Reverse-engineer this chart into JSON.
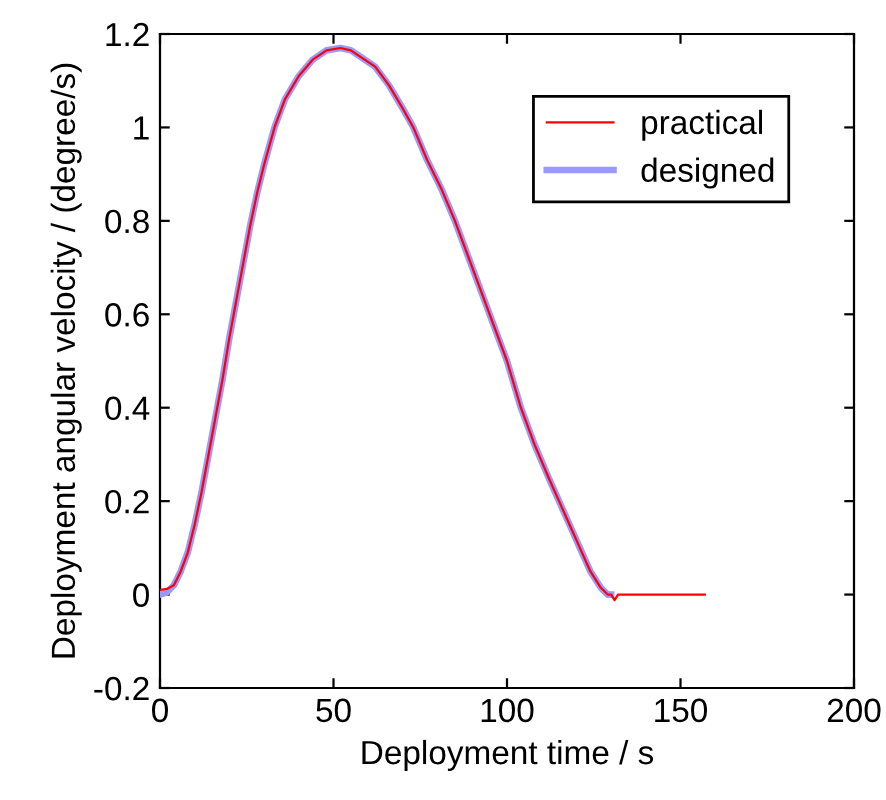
{
  "chart_data": {
    "type": "line",
    "xlabel": "Deployment time / s",
    "ylabel": "Deployment angular velocity / (degree/s)",
    "xlim": [
      0,
      200
    ],
    "ylim": [
      -0.2,
      1.2
    ],
    "xticks": [
      0,
      50,
      100,
      150,
      200
    ],
    "yticks": [
      -0.2,
      0,
      0.2,
      0.4,
      0.6,
      0.8,
      1,
      1.2
    ],
    "grid": false,
    "legend": "top right",
    "marker": "none",
    "line_style": "solid",
    "series": [
      {
        "name": "practical",
        "color": "#ff0000",
        "x": [
          0,
          2,
          4,
          6,
          8,
          10,
          12,
          14,
          16,
          18,
          20,
          22,
          24,
          26,
          28,
          30,
          33,
          36,
          40,
          44,
          48,
          52,
          55,
          58,
          62,
          66,
          70,
          73,
          77,
          81,
          85,
          90,
          95,
          100,
          104,
          108,
          112,
          115,
          118,
          121,
          124,
          127,
          129,
          130,
          131,
          132,
          157
        ],
        "values": [
          0.01,
          0.012,
          0.02,
          0.05,
          0.09,
          0.15,
          0.22,
          0.3,
          0.38,
          0.46,
          0.55,
          0.63,
          0.71,
          0.79,
          0.86,
          0.92,
          1.0,
          1.06,
          1.11,
          1.145,
          1.165,
          1.17,
          1.165,
          1.15,
          1.13,
          1.09,
          1.04,
          1.0,
          0.93,
          0.87,
          0.8,
          0.7,
          0.6,
          0.5,
          0.4,
          0.32,
          0.25,
          0.2,
          0.15,
          0.1,
          0.05,
          0.015,
          0.0,
          0.0,
          -0.012,
          0.0,
          0.0
        ]
      },
      {
        "name": "designed",
        "color": "#9999ff",
        "x": [
          0,
          2,
          4,
          6,
          8,
          10,
          12,
          14,
          16,
          18,
          20,
          22,
          24,
          26,
          28,
          30,
          33,
          36,
          40,
          44,
          48,
          52,
          55,
          58,
          62,
          66,
          70,
          73,
          77,
          81,
          85,
          90,
          95,
          100,
          104,
          108,
          112,
          115,
          118,
          121,
          124,
          127,
          129,
          130
        ],
        "values": [
          0.0,
          0.005,
          0.02,
          0.05,
          0.09,
          0.15,
          0.22,
          0.3,
          0.38,
          0.46,
          0.55,
          0.63,
          0.71,
          0.79,
          0.86,
          0.92,
          1.0,
          1.06,
          1.11,
          1.145,
          1.165,
          1.17,
          1.165,
          1.15,
          1.13,
          1.09,
          1.04,
          1.0,
          0.93,
          0.87,
          0.8,
          0.7,
          0.6,
          0.5,
          0.4,
          0.32,
          0.25,
          0.2,
          0.15,
          0.1,
          0.05,
          0.015,
          0.0,
          0.0
        ]
      }
    ]
  }
}
